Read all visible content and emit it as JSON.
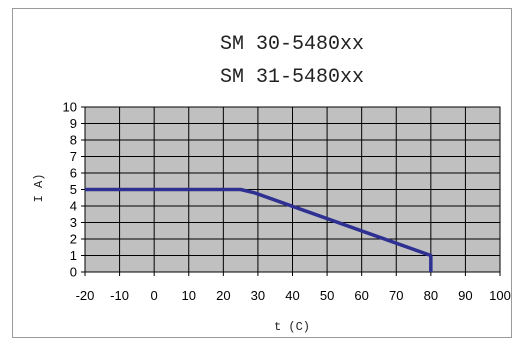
{
  "chart_data": {
    "type": "line",
    "title": "SM 30-5480xx",
    "subtitle": "SM 31-5480xx",
    "xlabel": "t (C)",
    "ylabel": "I A)",
    "xlim": [
      -20,
      100
    ],
    "ylim": [
      0,
      10
    ],
    "xticks": [
      "-20",
      "-10",
      "0",
      "10",
      "20",
      "30",
      "40",
      "50",
      "60",
      "70",
      "80",
      "90",
      "100"
    ],
    "yticks": [
      "0",
      "1",
      "2",
      "3",
      "4",
      "5",
      "6",
      "7",
      "8",
      "9",
      "10"
    ],
    "grid": true,
    "plot_background": "#c0c0c0",
    "line_color": "#2e3192",
    "series": [
      {
        "x": [
          -20,
          25,
          29,
          80,
          80
        ],
        "y": [
          5,
          5,
          4.8,
          1,
          0
        ]
      }
    ]
  }
}
